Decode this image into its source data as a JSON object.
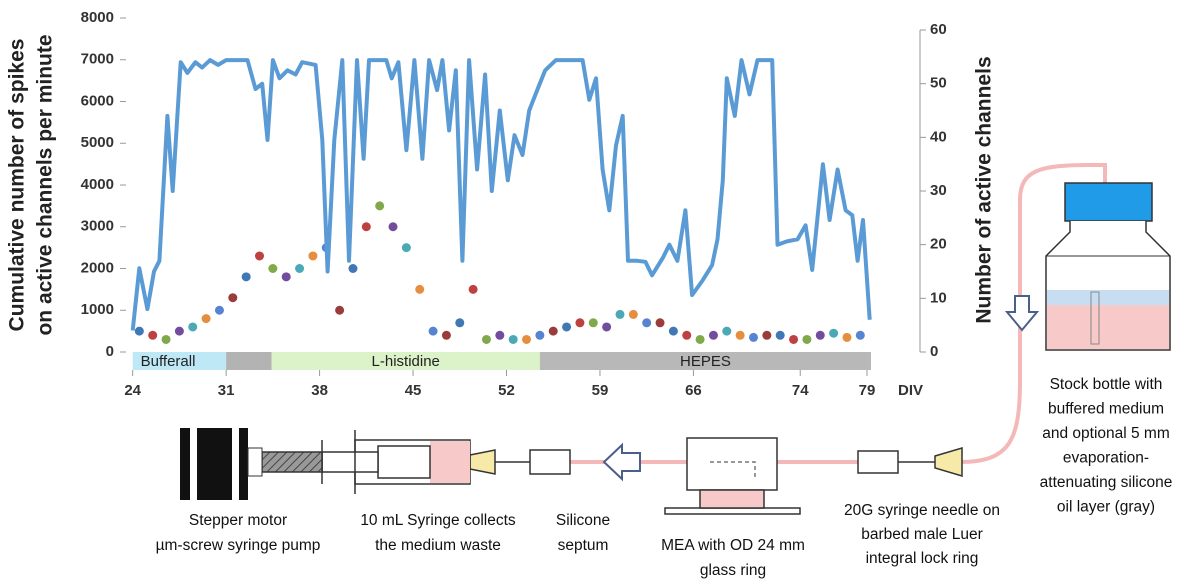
{
  "chart_data": {
    "type": "line",
    "y_label_lines": [
      "Cumulative number of spikes",
      "on active channels per minute"
    ],
    "y2_label": "Number of active channels",
    "x_unit": "DIV",
    "xlim": [
      23.8,
      79.6
    ],
    "xticks": [
      24,
      31,
      38,
      45,
      52,
      59,
      66,
      74,
      79
    ],
    "ylim": [
      0,
      8000
    ],
    "yticks": [
      0,
      1000,
      2000,
      3000,
      4000,
      5000,
      6000,
      7000,
      8000
    ],
    "y2lim": [
      0,
      60
    ],
    "y2ticks": [
      0,
      10,
      20,
      30,
      40,
      50,
      60
    ],
    "phases": [
      {
        "label": "Bufferall",
        "start": 24,
        "end": 31,
        "color": "#bfe8f7"
      },
      {
        "start": 31,
        "end": 34.4,
        "color": "#b3b3b3"
      },
      {
        "label": "L-histidine",
        "start": 34.4,
        "end": 54.5,
        "color": "#dcf2c8"
      },
      {
        "label": "HEPES",
        "start": 54.5,
        "end": 79.3,
        "color": "#b8b8b8"
      }
    ],
    "series": [
      {
        "type": "scatter",
        "axis": "y",
        "palette": [
          "#1f5fa8",
          "#b32020",
          "#6a9a2a",
          "#5b2d8c",
          "#2a9aa8",
          "#e07a1f",
          "#3a6fc8",
          "#8a1a1a"
        ],
        "x": [
          24.5,
          25.5,
          26.5,
          27.5,
          28.5,
          29.5,
          30.5,
          31.5,
          32.5,
          33.5,
          34.5,
          35.5,
          36.5,
          37.5,
          38.5,
          39.5,
          40.5,
          41.5,
          42.5,
          43.5,
          44.5,
          45.5,
          46.5,
          47.5,
          48.5,
          49.5,
          50.5,
          51.5,
          52.5,
          53.5,
          54.5,
          55.5,
          56.5,
          57.5,
          58.5,
          59.5,
          60.5,
          61.5,
          62.5,
          63.5,
          64.5,
          65.5,
          66.5,
          67.5,
          68.5,
          69.5,
          70.5,
          71.5,
          72.5,
          73.5,
          74.5,
          75.5,
          76.5,
          77.5,
          78.5
        ],
        "values": [
          500,
          400,
          300,
          500,
          600,
          800,
          1000,
          1300,
          1800,
          2300,
          2000,
          1800,
          2000,
          2300,
          2500,
          1000,
          2000,
          3000,
          3500,
          3000,
          2500,
          1500,
          500,
          400,
          700,
          1500,
          300,
          400,
          300,
          300,
          400,
          500,
          600,
          700,
          700,
          600,
          900,
          900,
          700,
          700,
          500,
          400,
          300,
          400,
          500,
          400,
          350,
          400,
          400,
          300,
          300,
          400,
          450,
          350,
          400
        ]
      },
      {
        "type": "line",
        "axis": "y2",
        "color": "#5b9bd5",
        "x": [
          24,
          24.5,
          25.1,
          25.6,
          26,
          26.6,
          27,
          27.6,
          28.1,
          28.7,
          29.2,
          29.8,
          30.4,
          31,
          32.6,
          33.2,
          33.7,
          34.1,
          34.5,
          35,
          35.6,
          36.2,
          36.7,
          37.7,
          38.2,
          38.6,
          39.1,
          39.7,
          40.2,
          40.8,
          41.3,
          41.7,
          43,
          43.4,
          43.9,
          44.5,
          45.1,
          45.7,
          46.2,
          46.8,
          47.2,
          47.7,
          48.2,
          48.7,
          49.2,
          49.8,
          50.4,
          50.9,
          51.5,
          52.1,
          52.6,
          53.2,
          53.7,
          54.3,
          54.9,
          55.7,
          57.7,
          58.2,
          58.7,
          59.2,
          59.7,
          60.2,
          60.7,
          61.1,
          61.8,
          62.4,
          62.9,
          63.7,
          64.2,
          64.8,
          65.4,
          65.9,
          66.7,
          67.4,
          67.8,
          68.2,
          68.5,
          69.1,
          69.6,
          70.2,
          70.8,
          71.9,
          72.3,
          73,
          73.8,
          74.4,
          74.9,
          75.7,
          76.2,
          76.8,
          77.4,
          77.9,
          78.3,
          78.7,
          79.2
        ],
        "values": [
          4,
          15.6,
          8,
          15,
          17,
          44,
          30,
          54,
          52,
          54,
          53,
          54.4,
          53.5,
          54.4,
          54.4,
          49,
          50,
          39.5,
          54.4,
          51,
          52.5,
          51.7,
          54,
          53.5,
          39.5,
          15,
          39.5,
          54.4,
          17,
          54.4,
          36,
          54.4,
          54.4,
          51,
          54,
          37.6,
          54.4,
          36,
          54.4,
          48.8,
          54.4,
          41.3,
          52.5,
          17,
          54.4,
          34,
          51.7,
          30,
          45,
          32,
          40.4,
          36.7,
          45,
          48.8,
          52.5,
          54.4,
          54.4,
          47,
          51,
          34,
          26.4,
          38.5,
          44,
          17,
          17,
          16.8,
          14.3,
          17.5,
          20,
          17,
          26.4,
          10.6,
          13.4,
          16.2,
          21,
          32,
          51,
          44,
          54.4,
          48,
          54.4,
          54.4,
          20,
          20.6,
          21,
          23.6,
          15.3,
          35,
          24.6,
          34,
          26.4,
          25.5,
          17,
          24.6,
          6
        ]
      }
    ]
  },
  "diagram": {
    "pump_label": [
      "Stepper motor",
      "µm-screw syringe pump"
    ],
    "syringe_label": [
      "10 mL Syringe collects",
      "the medium waste"
    ],
    "septum_label": [
      "Silicone",
      "septum"
    ],
    "mea_label": [
      "MEA with OD 24 mm",
      "glass ring"
    ],
    "needle_label": [
      "20G syringe needle on",
      "barbed male Luer",
      "integral lock ring"
    ],
    "bottle_label": [
      "Stock bottle with",
      "buffered medium",
      "and optional 5 mm",
      "evaporation-",
      "attenuating silicone",
      "oil layer (gray)"
    ]
  }
}
